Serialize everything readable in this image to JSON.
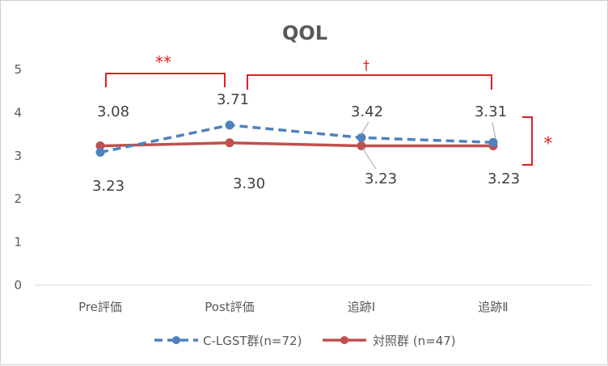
{
  "chart_data": {
    "type": "line",
    "title": "QOL",
    "categories": [
      "Pre評価",
      "Post評価",
      "追跡Ⅰ",
      "追跡Ⅱ"
    ],
    "ylim": [
      0,
      5
    ],
    "yticks": [
      "0",
      "1",
      "2",
      "3",
      "4",
      "5"
    ],
    "grid": false,
    "legend": "bottom",
    "series": [
      {
        "name": "C-LGST群(n=72)",
        "values": [
          3.08,
          3.71,
          3.42,
          3.31
        ],
        "labels": [
          "3.08",
          "3.71",
          "3.42",
          "3.31"
        ],
        "color": "#4f81bd",
        "line_style": "dashed"
      },
      {
        "name": "対照群 (n=47)",
        "values": [
          3.23,
          3.3,
          3.23,
          3.23
        ],
        "labels": [
          "3.23",
          "3.30",
          "3.23",
          "3.23"
        ],
        "color": "#c0504d",
        "line_style": "solid"
      }
    ],
    "significance": [
      {
        "from": "Pre評価",
        "to": "Post評価",
        "mark": "**"
      },
      {
        "from": "Post評価",
        "to": "追跡Ⅱ",
        "mark": "†"
      },
      {
        "between": "groups",
        "mark": "*"
      }
    ],
    "significance_color": "#e02020"
  }
}
